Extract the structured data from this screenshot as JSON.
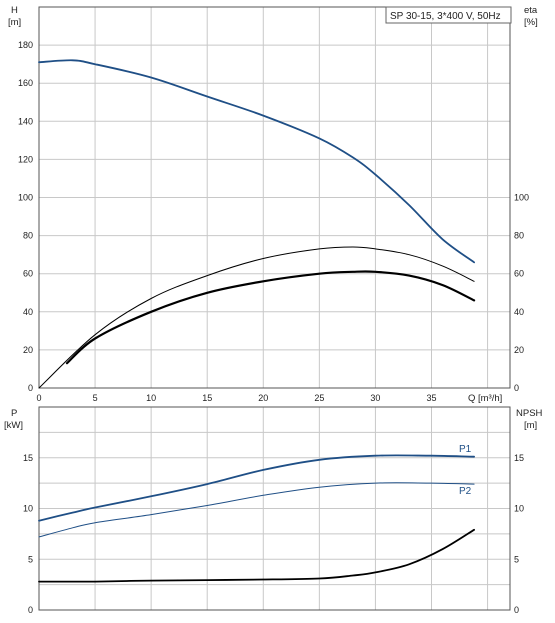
{
  "legend": "SP 30-15, 3*400 V, 50Hz",
  "top_chart": {
    "ylabel_left": "H",
    "ylabel_left_unit": "[m]",
    "ylabel_right": "eta",
    "ylabel_right_unit": "[%]",
    "xlabel": "Q",
    "xlabel_unit": "[m³/h]"
  },
  "bottom_chart": {
    "ylabel_left": "P",
    "ylabel_left_unit": "[kW]",
    "ylabel_right": "NPSH",
    "ylabel_right_unit": "[m]",
    "series_label_p1": "P1",
    "series_label_p2": "P2"
  },
  "colors": {
    "blue": "#1f4f86",
    "black": "#000000",
    "grid": "#c8c8c8",
    "axis": "#555555"
  },
  "chart_data": [
    {
      "type": "line",
      "title": "",
      "legend": "SP 30-15, 3*400 V, 50Hz",
      "xlabel": "Q [m³/h]",
      "ylabel": "H [m]",
      "ylabel_right": "eta [%]",
      "xlim": [
        0,
        42
      ],
      "ylim_left": [
        0,
        200
      ],
      "ylim_right": [
        0,
        200
      ],
      "x_ticks": [
        0,
        5,
        10,
        15,
        20,
        25,
        30,
        35
      ],
      "y_ticks_left": [
        0,
        20,
        40,
        60,
        80,
        100,
        120,
        140,
        160,
        180
      ],
      "y_ticks_right": [
        0,
        20,
        40,
        60,
        80,
        100
      ],
      "series": [
        {
          "name": "H",
          "x": [
            0,
            3,
            5,
            10,
            15,
            20,
            25,
            28,
            30,
            33,
            36,
            38.8
          ],
          "y": [
            171,
            172,
            170,
            163,
            153,
            143,
            131,
            121,
            112,
            96,
            78,
            66
          ]
        },
        {
          "x": [
            2.5,
            5,
            10,
            15,
            20,
            25,
            28,
            30,
            33,
            36,
            38.8
          ],
          "y": [
            13,
            26,
            40,
            50,
            56,
            60,
            61,
            61,
            59,
            54,
            46
          ]
        },
        {
          "x": [
            0,
            5,
            10,
            15,
            20,
            25,
            28,
            30,
            33,
            36,
            38.8
          ],
          "y": [
            0,
            28,
            47,
            59,
            68,
            73,
            74,
            73,
            70,
            64,
            56
          ]
        }
      ]
    },
    {
      "type": "line",
      "title": "",
      "xlim": [
        0,
        42
      ],
      "ylim_left": [
        0,
        20
      ],
      "ylim_right": [
        0,
        20
      ],
      "y_ticks_left": [
        0,
        5,
        10,
        15
      ],
      "y_ticks_right": [
        0,
        5,
        10,
        15
      ],
      "ylabel": "P [kW]",
      "ylabel_right": "NPSH [m]",
      "series": [
        {
          "name": "P1",
          "x": [
            0,
            3,
            5,
            10,
            15,
            20,
            25,
            30,
            35,
            38.8
          ],
          "y": [
            8.8,
            9.6,
            10.1,
            11.2,
            12.4,
            13.8,
            14.8,
            15.2,
            15.2,
            15.1
          ]
        },
        {
          "name": "P2",
          "x": [
            0,
            3,
            5,
            10,
            15,
            20,
            25,
            30,
            35,
            38.8
          ],
          "y": [
            7.2,
            8.1,
            8.6,
            9.4,
            10.3,
            11.3,
            12.1,
            12.5,
            12.5,
            12.4
          ]
        },
        {
          "x": [
            0,
            3,
            5,
            10,
            15,
            20,
            25,
            28,
            30,
            33,
            36,
            38.8
          ],
          "y": [
            2.8,
            2.8,
            2.8,
            2.9,
            2.95,
            3.0,
            3.1,
            3.4,
            3.7,
            4.5,
            6.0,
            7.9
          ]
        }
      ]
    }
  ]
}
